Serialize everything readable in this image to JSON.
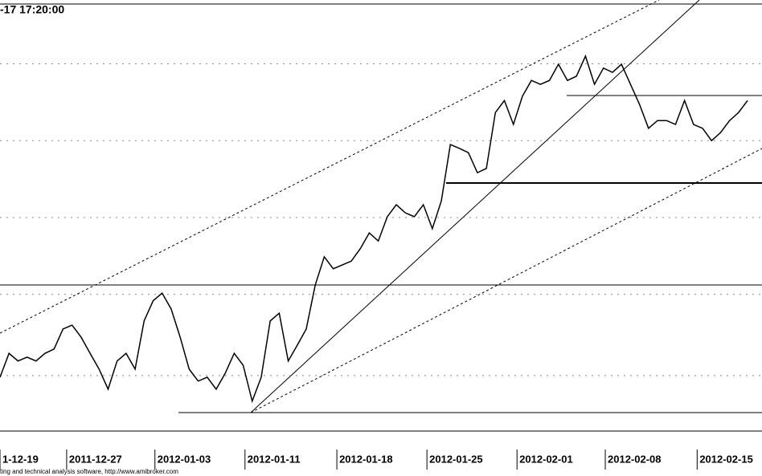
{
  "chart_data": {
    "type": "line",
    "title": "-17 17:20:00",
    "footer": "ting and technical analysis software, http://www.amibroker.com",
    "x": [
      0,
      0.5,
      1,
      1.5,
      2,
      2.5,
      3,
      3.5,
      4,
      4.5,
      5,
      5.5,
      6,
      6.5,
      7,
      7.5,
      8,
      8.5,
      9,
      9.5,
      10,
      10.5,
      11,
      11.5,
      12,
      12.5,
      13,
      13.5,
      14,
      14.5,
      15,
      15.5,
      16,
      16.5,
      17,
      17.5,
      18,
      18.5,
      19,
      19.5,
      20,
      20.5,
      21,
      21.5,
      22,
      22.5,
      23,
      23.5,
      24,
      24.5,
      25,
      25.5,
      26,
      26.5,
      27,
      27.5,
      28,
      28.5,
      29,
      29.5,
      30,
      30.5,
      31,
      31.5,
      32,
      32.5,
      33,
      33.5,
      34,
      34.5,
      35,
      35.5,
      36,
      36.5,
      37,
      37.5,
      38,
      38.5,
      39,
      39.5,
      40,
      40.5,
      41,
      41.5
    ],
    "values": [
      12.6,
      18.2,
      16.4,
      17.3,
      16.4,
      18.2,
      19.2,
      23.9,
      24.8,
      22.0,
      18.2,
      14.5,
      9.8,
      16.4,
      18.2,
      14.5,
      25.8,
      30.5,
      32.3,
      28.6,
      22.0,
      14.5,
      11.7,
      12.6,
      9.8,
      13.5,
      18.2,
      15.4,
      7.0,
      12.6,
      25.8,
      27.6,
      16.4,
      20.1,
      23.9,
      34.2,
      40.8,
      38.0,
      38.9,
      39.8,
      42.7,
      46.4,
      44.5,
      50.2,
      53.0,
      51.1,
      50.2,
      53.0,
      47.4,
      53.9,
      67.1,
      66.2,
      65.2,
      60.5,
      61.5,
      74.6,
      77.4,
      71.8,
      78.4,
      82.1,
      81.2,
      82.1,
      85.9,
      82.1,
      83.1,
      87.8,
      81.2,
      85.0,
      84.0,
      85.9,
      81.2,
      76.5,
      70.9,
      72.7,
      72.7,
      71.8,
      77.4,
      71.8,
      70.9,
      68.0,
      69.9,
      72.7,
      74.6,
      77.4
    ],
    "color": "#000000",
    "xlim": [
      0,
      42.3
    ],
    "xticks": [
      {
        "value": 0,
        "label": "1-12-19"
      },
      {
        "value": 3.7,
        "label": "2011-12-27"
      },
      {
        "value": 8.6,
        "label": "2012-01-03"
      },
      {
        "value": 13.6,
        "label": "2012-01-11"
      },
      {
        "value": 18.7,
        "label": "2012-01-18"
      },
      {
        "value": 23.7,
        "label": "2012-01-25"
      },
      {
        "value": 28.7,
        "label": "2012-02-01"
      },
      {
        "value": 33.6,
        "label": "2012-02-08"
      },
      {
        "value": 38.7,
        "label": "2012-02-15"
      }
    ],
    "ylim": [
      0,
      100
    ],
    "yticks": [
      13,
      32,
      50,
      68,
      86
    ],
    "grid": true
  }
}
